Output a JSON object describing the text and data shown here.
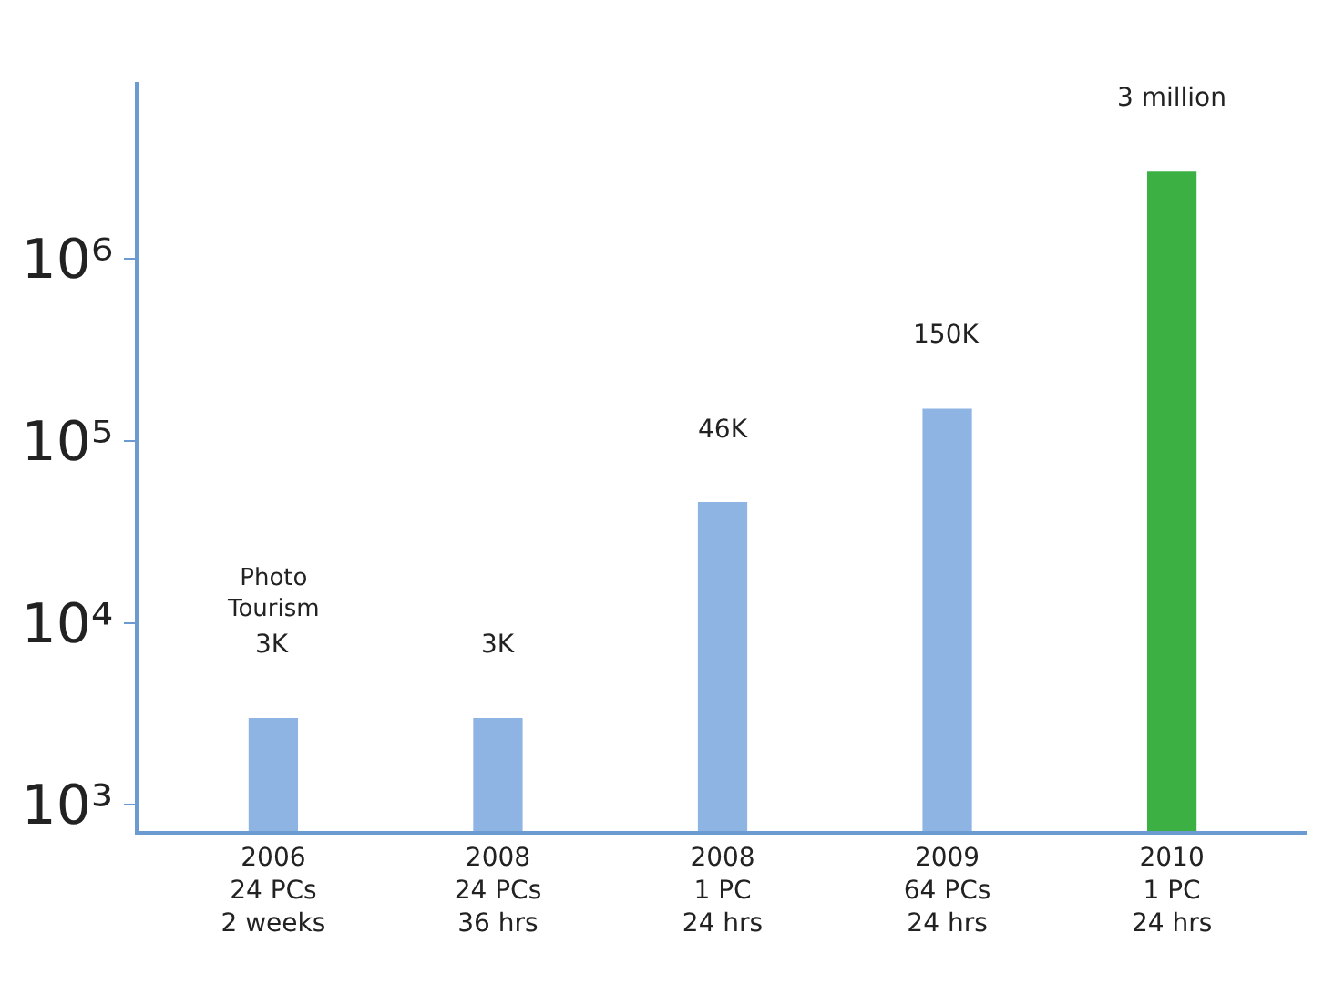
{
  "chart_data": {
    "type": "bar",
    "categories": [
      "2006\n24 PCs\n2 weeks",
      "2008\n24 PCs\n36 hrs",
      "2008\n1 PC\n24 hrs",
      "2009\n64 PCs\n24 hrs",
      "2010\n1 PC\n24 hrs"
    ],
    "values": [
      3000,
      3000,
      46000,
      150000,
      3000000
    ],
    "colors": [
      "#8db4e2",
      "#8db4e2",
      "#8db4e2",
      "#8db4e2",
      "#3cb043"
    ],
    "value_labels": [
      "3K",
      "3K",
      "46K",
      "150K",
      "3 million"
    ],
    "annotations": [
      "Photo Tourism"
    ],
    "log": true,
    "ylim": [
      720,
      9300000
    ],
    "yticks": [
      {
        "value": 1000,
        "label": "10³"
      },
      {
        "value": 10000,
        "label": "10⁴"
      },
      {
        "value": 100000,
        "label": "10⁵"
      },
      {
        "value": 1000000,
        "label": "10⁶"
      }
    ],
    "legend": false
  }
}
